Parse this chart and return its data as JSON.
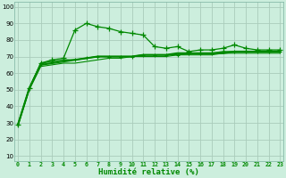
{
  "bg_color": "#cceedd",
  "grid_color": "#aaccbb",
  "line_color": "#008800",
  "xlabel": "Humidité relative (%)",
  "x_ticks": [
    0,
    1,
    2,
    3,
    4,
    5,
    6,
    7,
    8,
    9,
    10,
    11,
    12,
    13,
    14,
    15,
    16,
    17,
    18,
    19,
    20,
    21,
    22,
    23
  ],
  "y_ticks": [
    10,
    20,
    30,
    40,
    50,
    60,
    70,
    80,
    90,
    100
  ],
  "ylim": [
    7,
    103
  ],
  "xlim": [
    -0.3,
    23.3
  ],
  "series1": [
    29,
    51,
    66,
    68,
    69,
    86,
    90,
    88,
    87,
    85,
    84,
    83,
    76,
    75,
    76,
    73,
    74,
    74,
    75,
    77,
    75,
    74,
    74,
    74
  ],
  "series2": [
    29,
    51,
    66,
    67,
    68,
    68,
    69,
    70,
    70,
    70,
    70,
    71,
    71,
    71,
    71,
    72,
    72,
    72,
    73,
    73,
    73,
    73,
    73,
    73
  ],
  "series3": [
    29,
    51,
    65,
    66,
    67,
    68,
    69,
    70,
    70,
    70,
    70,
    71,
    71,
    71,
    72,
    72,
    72,
    72,
    72,
    73,
    73,
    73,
    73,
    73
  ],
  "series4": [
    28,
    50,
    64,
    65,
    66,
    66,
    67,
    68,
    69,
    69,
    70,
    70,
    70,
    70,
    71,
    71,
    71,
    71,
    72,
    72,
    72,
    72,
    72,
    72
  ]
}
